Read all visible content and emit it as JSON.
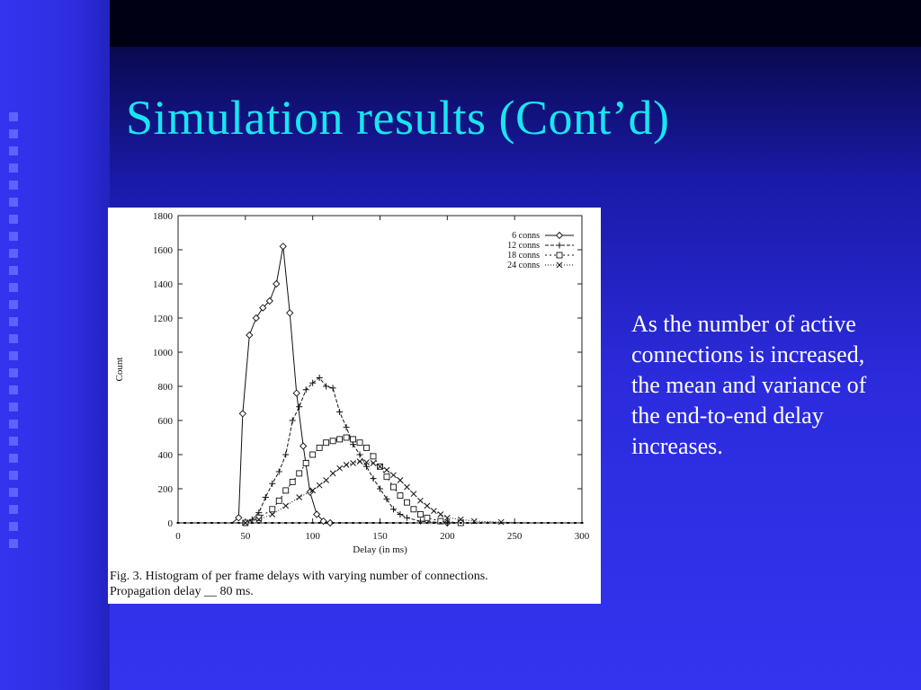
{
  "slide": {
    "title": "Simulation results (Cont’d)",
    "body_text": "As the number of active connections is increased,  the mean and variance of the end-to-end delay increases.",
    "colors": {
      "title": "#19e5f0",
      "background": "#2b2bdc",
      "text": "#ffffff"
    }
  },
  "figure": {
    "caption_line1": "Fig. 3.   Histogram of per frame delays with varying number of connections.",
    "caption_line2": "Propagation delay __ 80 ms."
  },
  "chart_data": {
    "type": "line",
    "title": "",
    "xlabel": "Delay (in ms)",
    "ylabel": "Count",
    "xlim": [
      0,
      300
    ],
    "ylim": [
      0,
      1800
    ],
    "xticks": [
      0,
      50,
      100,
      150,
      200,
      250,
      300
    ],
    "yticks": [
      0,
      200,
      400,
      600,
      800,
      1000,
      1200,
      1400,
      1600,
      1800
    ],
    "grid": false,
    "legend": "top-right",
    "series": [
      {
        "name": "6 conns",
        "marker": "diamond",
        "points": [
          [
            0,
            0
          ],
          [
            40,
            0
          ],
          [
            45,
            30
          ],
          [
            48,
            640
          ],
          [
            53,
            1100
          ],
          [
            58,
            1200
          ],
          [
            63,
            1260
          ],
          [
            68,
            1300
          ],
          [
            73,
            1400
          ],
          [
            78,
            1620
          ],
          [
            83,
            1230
          ],
          [
            88,
            760
          ],
          [
            93,
            450
          ],
          [
            98,
            180
          ],
          [
            103,
            50
          ],
          [
            108,
            10
          ],
          [
            113,
            0
          ],
          [
            200,
            0
          ],
          [
            300,
            0
          ]
        ]
      },
      {
        "name": "12 conns",
        "marker": "plus",
        "points": [
          [
            0,
            0
          ],
          [
            50,
            0
          ],
          [
            55,
            20
          ],
          [
            60,
            60
          ],
          [
            65,
            150
          ],
          [
            70,
            230
          ],
          [
            75,
            300
          ],
          [
            80,
            400
          ],
          [
            85,
            600
          ],
          [
            90,
            680
          ],
          [
            95,
            780
          ],
          [
            100,
            820
          ],
          [
            105,
            850
          ],
          [
            110,
            800
          ],
          [
            115,
            790
          ],
          [
            120,
            650
          ],
          [
            125,
            560
          ],
          [
            130,
            460
          ],
          [
            135,
            400
          ],
          [
            140,
            330
          ],
          [
            145,
            260
          ],
          [
            150,
            200
          ],
          [
            155,
            140
          ],
          [
            160,
            80
          ],
          [
            165,
            50
          ],
          [
            170,
            30
          ],
          [
            180,
            10
          ],
          [
            200,
            0
          ],
          [
            300,
            0
          ]
        ]
      },
      {
        "name": "18 conns",
        "marker": "square",
        "points": [
          [
            0,
            0
          ],
          [
            50,
            0
          ],
          [
            60,
            30
          ],
          [
            70,
            80
          ],
          [
            75,
            130
          ],
          [
            80,
            190
          ],
          [
            85,
            240
          ],
          [
            90,
            290
          ],
          [
            95,
            350
          ],
          [
            100,
            400
          ],
          [
            105,
            440
          ],
          [
            110,
            470
          ],
          [
            115,
            480
          ],
          [
            120,
            490
          ],
          [
            125,
            500
          ],
          [
            130,
            490
          ],
          [
            135,
            470
          ],
          [
            140,
            440
          ],
          [
            145,
            390
          ],
          [
            150,
            330
          ],
          [
            155,
            270
          ],
          [
            160,
            210
          ],
          [
            165,
            160
          ],
          [
            170,
            120
          ],
          [
            175,
            80
          ],
          [
            180,
            50
          ],
          [
            185,
            30
          ],
          [
            195,
            10
          ],
          [
            210,
            0
          ],
          [
            300,
            0
          ]
        ]
      },
      {
        "name": "24 conns",
        "marker": "cross",
        "points": [
          [
            0,
            0
          ],
          [
            50,
            0
          ],
          [
            60,
            20
          ],
          [
            70,
            50
          ],
          [
            80,
            100
          ],
          [
            90,
            150
          ],
          [
            100,
            190
          ],
          [
            105,
            220
          ],
          [
            110,
            250
          ],
          [
            115,
            290
          ],
          [
            120,
            320
          ],
          [
            125,
            340
          ],
          [
            130,
            350
          ],
          [
            135,
            360
          ],
          [
            140,
            355
          ],
          [
            145,
            350
          ],
          [
            150,
            330
          ],
          [
            155,
            310
          ],
          [
            160,
            280
          ],
          [
            165,
            250
          ],
          [
            170,
            210
          ],
          [
            175,
            170
          ],
          [
            180,
            130
          ],
          [
            185,
            100
          ],
          [
            190,
            70
          ],
          [
            195,
            50
          ],
          [
            200,
            30
          ],
          [
            210,
            20
          ],
          [
            220,
            10
          ],
          [
            240,
            5
          ],
          [
            260,
            0
          ],
          [
            300,
            0
          ]
        ]
      }
    ]
  }
}
